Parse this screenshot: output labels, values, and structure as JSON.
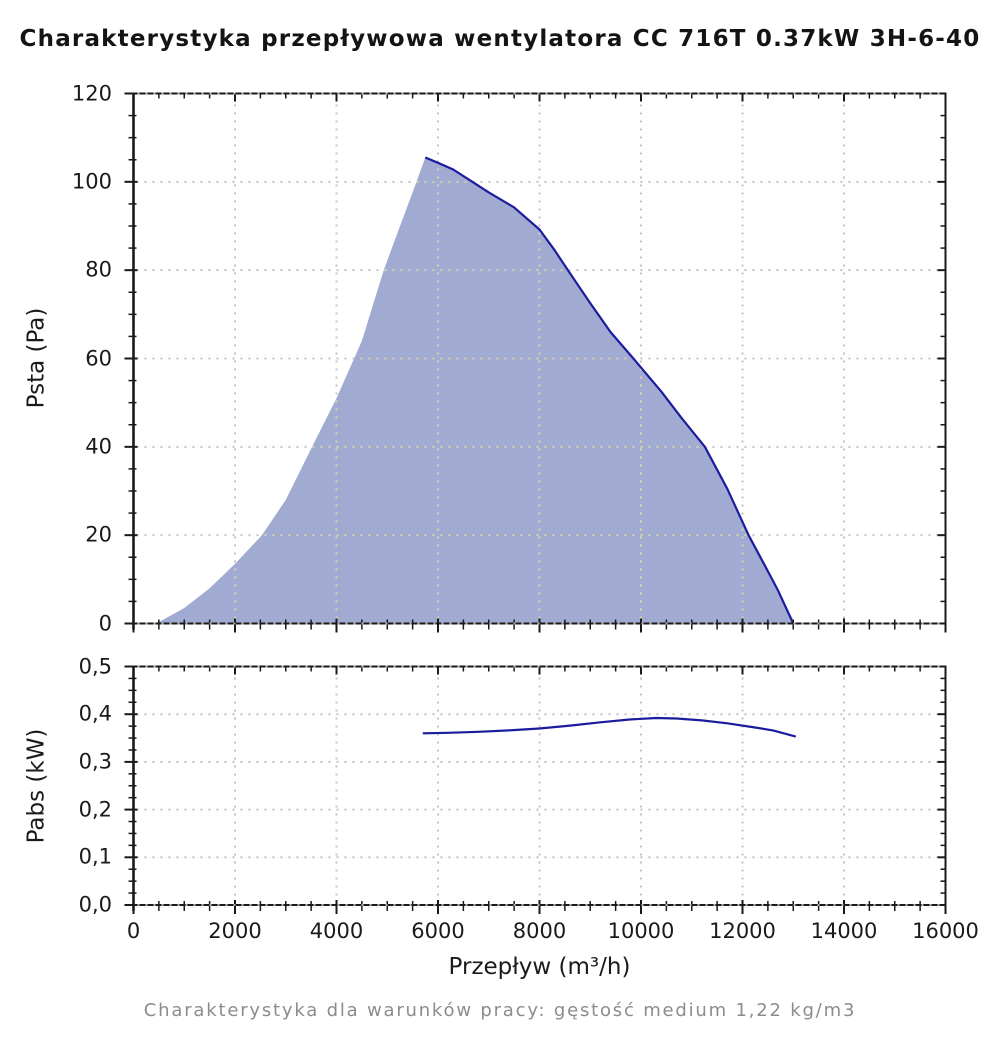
{
  "title": "Charakterystyka przepływowa wentylatora CC 716T 0.37kW 3H-6-40",
  "footer": "Charakterystyka dla warunków pracy: gęstość medium 1,22 kg/m3",
  "colors": {
    "curve": "#1c1c9e",
    "area_fill": "#a1abd2",
    "grid": "#c2c2c2",
    "grid_on_fill": "#d9d3ad",
    "axis": "#1a1a1a",
    "border_dots": "#b0b0b0",
    "text": "#1a1a1a",
    "footer_text": "#8c8c8c"
  },
  "x_axis": {
    "label": "Przepływ (m³/h)",
    "min": 0,
    "max": 16000,
    "major_step": 2000,
    "minor_step": 500,
    "tick_values": [
      0,
      2000,
      4000,
      6000,
      8000,
      10000,
      12000,
      14000,
      16000
    ],
    "tick_labels": [
      "0",
      "2000",
      "4000",
      "6000",
      "8000",
      "10000",
      "12000",
      "14000",
      "16000"
    ]
  },
  "chart_data": [
    {
      "type": "area",
      "name": "static-pressure-curve",
      "ylabel": "Psta (Pa)",
      "xlabel": "Przepływ (m³/h)",
      "ylim": [
        0,
        120
      ],
      "xlim": [
        0,
        16000
      ],
      "y_major_step": 20,
      "y_minor_step": 5,
      "grid": true,
      "y_tick_values": [
        0,
        20,
        40,
        60,
        80,
        100,
        120
      ],
      "y_tick_labels": [
        "0",
        "20",
        "40",
        "60",
        "80",
        "100",
        "120"
      ],
      "fill_boundary_points": [
        [
          450,
          0
        ],
        [
          1000,
          3.5
        ],
        [
          1500,
          8
        ],
        [
          2000,
          13.5
        ],
        [
          2530,
          20
        ],
        [
          3000,
          28
        ],
        [
          3520,
          40
        ],
        [
          4000,
          51
        ],
        [
          4500,
          64
        ],
        [
          4930,
          80
        ],
        [
          5300,
          91.5
        ],
        [
          5560,
          99.5
        ],
        [
          5750,
          105.5
        ]
      ],
      "curve_points": [
        [
          5750,
          105.5
        ],
        [
          6000,
          104.3
        ],
        [
          6300,
          102.8
        ],
        [
          6650,
          100.2
        ],
        [
          7000,
          97.6
        ],
        [
          7500,
          94.2
        ],
        [
          8000,
          89.2
        ],
        [
          8300,
          84.5
        ],
        [
          8560,
          80
        ],
        [
          9000,
          72.5
        ],
        [
          9400,
          66
        ],
        [
          9850,
          60
        ],
        [
          10400,
          52.5
        ],
        [
          10800,
          46.5
        ],
        [
          11260,
          40
        ],
        [
          11700,
          30.5
        ],
        [
          12120,
          20
        ],
        [
          12400,
          14
        ],
        [
          12700,
          7.5
        ],
        [
          13000,
          0
        ]
      ]
    },
    {
      "type": "line",
      "name": "absorbed-power-curve",
      "ylabel": "Pabs (kW)",
      "xlabel": "Przepływ (m³/h)",
      "ylim": [
        0,
        0.5
      ],
      "xlim": [
        0,
        16000
      ],
      "y_major_step": 0.1,
      "y_minor_step": 0.025,
      "grid": true,
      "y_tick_values": [
        0,
        0.1,
        0.2,
        0.3,
        0.4,
        0.5
      ],
      "y_tick_labels": [
        "0,0",
        "0,1",
        "0,2",
        "0,3",
        "0,4",
        "0,5"
      ],
      "curve_points": [
        [
          5700,
          0.36
        ],
        [
          6200,
          0.361
        ],
        [
          6800,
          0.363
        ],
        [
          7400,
          0.366
        ],
        [
          8000,
          0.37
        ],
        [
          8600,
          0.376
        ],
        [
          9200,
          0.383
        ],
        [
          9800,
          0.389
        ],
        [
          10300,
          0.392
        ],
        [
          10700,
          0.391
        ],
        [
          11200,
          0.387
        ],
        [
          11700,
          0.381
        ],
        [
          12200,
          0.373
        ],
        [
          12600,
          0.366
        ],
        [
          13050,
          0.353
        ]
      ]
    }
  ]
}
